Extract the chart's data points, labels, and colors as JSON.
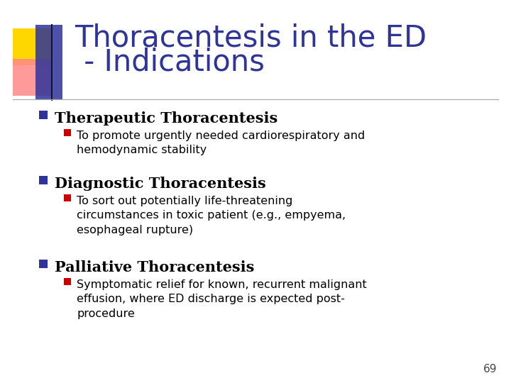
{
  "title_line1": "Thoracentesis in the ED",
  "title_line2": " - Indications",
  "title_color": "#2E3499",
  "bg_color": "#FFFFFF",
  "slide_number": "69",
  "bullet1_header": "Therapeutic Thoracentesis",
  "bullet1_sub": "To promote urgently needed cardiorespiratory and\nhemodynamic stability",
  "bullet2_header": "Diagnostic Thoracentesis",
  "bullet2_sub": "To sort out potentially life-threatening\ncircumstances in toxic patient (e.g., empyema,\nesophageal rupture)",
  "bullet3_header": "Palliative Thoracentesis",
  "bullet3_sub": "Symptomatic relief for known, recurrent malignant\neffusion, where ED discharge is expected post-\nprocedure",
  "header_bullet_color": "#2E3499",
  "sub_bullet_color": "#CC0000",
  "header_text_color": "#000000",
  "sub_text_color": "#000000",
  "decor_yellow": "#FFD700",
  "decor_pink": "#FF8888",
  "decor_blue": "#2E3499",
  "line_color": "#AAAAAA",
  "title_fontsize": 30,
  "header_fontsize": 15,
  "sub_fontsize": 11.5
}
